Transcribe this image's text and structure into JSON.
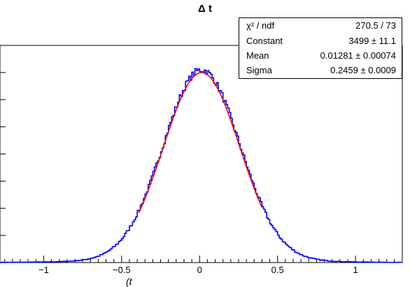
{
  "chart_data": {
    "type": "histogram",
    "title": "Δ t",
    "xlabel": "(t",
    "xlim": [
      -1.28,
      1.3
    ],
    "ylim": [
      0,
      4000
    ],
    "x_ticks": [
      -1,
      -0.5,
      0,
      0.5,
      1
    ],
    "x_tick_labels": [
      "−1",
      "−0.5",
      "0",
      "0.5",
      "1"
    ],
    "y_ticks": [
      500,
      1000,
      1500,
      2000,
      2500,
      3000,
      3500
    ],
    "fit": {
      "function": "gaus",
      "color": "#ff0000",
      "range": [
        -0.39,
        0.4
      ],
      "constant": 3499,
      "mean": 0.01281,
      "sigma": 0.2459
    },
    "histogram": {
      "color": "#0000ff",
      "bin_width": 0.01,
      "x_range": [
        -1.28,
        1.3
      ],
      "gaussian_core": {
        "constant": 3499,
        "mean": 0.01281,
        "sigma": 0.2459
      },
      "tail_fraction": 0.015,
      "tail_sigma": 0.55
    }
  },
  "stats": {
    "rows": [
      {
        "label": "χ² / ndf",
        "value": "270.5 / 73"
      },
      {
        "label": "Constant",
        "value": "3499 ± 11.1"
      },
      {
        "label": "Mean",
        "value": "0.01281 ± 0.00074"
      },
      {
        "label": "Sigma",
        "value": "0.2459 ± 0.0009"
      }
    ]
  }
}
